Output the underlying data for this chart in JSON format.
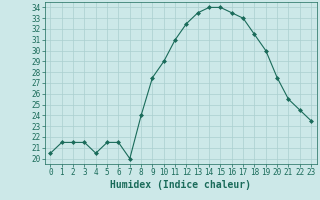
{
  "x": [
    0,
    1,
    2,
    3,
    4,
    5,
    6,
    7,
    8,
    9,
    10,
    11,
    12,
    13,
    14,
    15,
    16,
    17,
    18,
    19,
    20,
    21,
    22,
    23
  ],
  "y": [
    20.5,
    21.5,
    21.5,
    21.5,
    20.5,
    21.5,
    21.5,
    20.0,
    24.0,
    27.5,
    29.0,
    31.0,
    32.5,
    33.5,
    34.0,
    34.0,
    33.5,
    33.0,
    31.5,
    30.0,
    27.5,
    25.5,
    24.5,
    23.5
  ],
  "line_color": "#1a6b5a",
  "marker": "D",
  "marker_size": 2.0,
  "bg_color": "#cce8e8",
  "grid_color": "#aacfcf",
  "xlabel": "Humidex (Indice chaleur)",
  "xlim": [
    -0.5,
    23.5
  ],
  "ylim": [
    19.5,
    34.5
  ],
  "yticks": [
    20,
    21,
    22,
    23,
    24,
    25,
    26,
    27,
    28,
    29,
    30,
    31,
    32,
    33,
    34
  ],
  "xticks": [
    0,
    1,
    2,
    3,
    4,
    5,
    6,
    7,
    8,
    9,
    10,
    11,
    12,
    13,
    14,
    15,
    16,
    17,
    18,
    19,
    20,
    21,
    22,
    23
  ],
  "tick_color": "#1a6b5a",
  "label_color": "#1a6b5a",
  "xlabel_fontsize": 7,
  "tick_fontsize": 5.5
}
